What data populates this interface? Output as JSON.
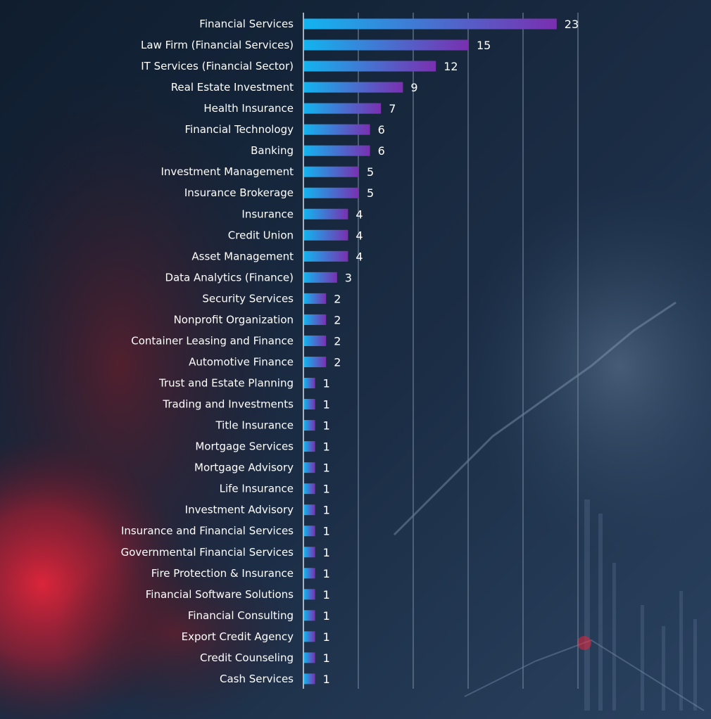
{
  "chart_data": {
    "type": "bar",
    "orientation": "horizontal",
    "categories": [
      "Financial Services",
      "Law Firm (Financial Services)",
      "IT Services (Financial Sector)",
      "Real Estate Investment",
      "Health Insurance",
      "Financial Technology",
      "Banking",
      "Investment Management",
      "Insurance Brokerage",
      "Insurance",
      "Credit Union",
      "Asset Management",
      "Data Analytics (Finance)",
      "Security Services",
      "Nonprofit Organization",
      "Container Leasing and Finance",
      "Automotive Finance",
      "Trust and Estate Planning",
      "Trading and Investments",
      "Title Insurance",
      "Mortgage Services",
      "Mortgage Advisory",
      "Life Insurance",
      "Investment Advisory",
      "Insurance and Financial Services",
      "Governmental Financial Services",
      "Fire Protection & Insurance",
      "Financial Software Solutions",
      "Financial Consulting",
      "Export Credit Agency",
      "Credit Counseling",
      "Cash Services"
    ],
    "values": [
      23,
      15,
      12,
      9,
      7,
      6,
      6,
      5,
      5,
      4,
      4,
      4,
      3,
      2,
      2,
      2,
      2,
      1,
      1,
      1,
      1,
      1,
      1,
      1,
      1,
      1,
      1,
      1,
      1,
      1,
      1,
      1
    ],
    "title": "",
    "xlabel": "",
    "ylabel": "",
    "xlim": [
      0,
      25
    ],
    "grid": true,
    "legend": "none",
    "colors": {
      "bar_start": "#12b4f0",
      "bar_end": "#7a2fb0",
      "gridline": "#6e7f96",
      "text": "#ffffff",
      "background": "#172537"
    }
  }
}
